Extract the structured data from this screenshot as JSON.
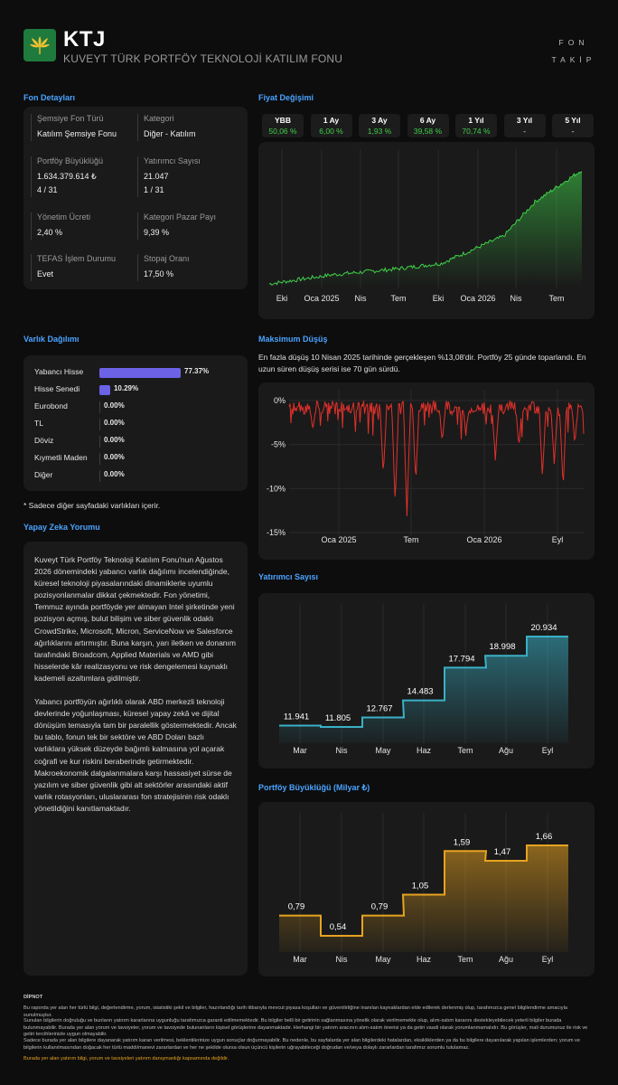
{
  "header": {
    "ticker": "KTJ",
    "fund_name": "KUVEYT TÜRK PORTFÖY TEKNOLOJİ KATILIM FONU",
    "brand_line1": "FON",
    "brand_line2": "TAKİP",
    "logo_icon": "green-leaf-logo-icon"
  },
  "fund_details": {
    "title": "Fon Detayları",
    "fields": [
      {
        "label": "Şemsiye Fon Türü",
        "value": "Katılım Şemsiye Fonu"
      },
      {
        "label": "Kategori",
        "value": "Diğer - Katılım"
      },
      {
        "label": "Portföy Büyüklüğü",
        "value": "1.634.379.614 ₺",
        "value2": "4 / 31"
      },
      {
        "label": "Yatırımcı Sayısı",
        "value": "21.047",
        "value2": "1 / 31"
      },
      {
        "label": "Yönetim Ücreti",
        "value": "2,40 %"
      },
      {
        "label": "Kategori Pazar Payı",
        "value": "9,39 %"
      },
      {
        "label": "TEFAS İşlem Durumu",
        "value": "Evet"
      },
      {
        "label": "Stopaj Oranı",
        "value": "17,50 %"
      }
    ]
  },
  "price_change": {
    "title": "Fiyat Değişimi",
    "periods": [
      {
        "label": "YBB",
        "value": "50,06 %"
      },
      {
        "label": "1 Ay",
        "value": "6,00 %"
      },
      {
        "label": "3 Ay",
        "value": "1,93 %"
      },
      {
        "label": "6 Ay",
        "value": "39,58 %"
      },
      {
        "label": "1 Yıl",
        "value": "70,74 %"
      },
      {
        "label": "3 Yıl",
        "value": "-"
      },
      {
        "label": "5 Yıl",
        "value": "-"
      }
    ],
    "positive_color": "#3fd04a"
  },
  "asset_allocation": {
    "title": "Varlık Dağılımı",
    "items": [
      {
        "name": "Yabancı Hisse",
        "pct": 77.37,
        "label": "77.37%"
      },
      {
        "name": "Hisse Senedi",
        "pct": 10.29,
        "label": "10.29%"
      },
      {
        "name": "Eurobond",
        "pct": 0,
        "label": "0.00%"
      },
      {
        "name": "TL",
        "pct": 0,
        "label": "0.00%"
      },
      {
        "name": "Döviz",
        "pct": 0,
        "label": "0.00%"
      },
      {
        "name": "Kıymetli Maden",
        "pct": 0,
        "label": "0.00%"
      },
      {
        "name": "Diğer",
        "pct": 0,
        "label": "0.00%"
      }
    ],
    "note": "* Sadece diğer sayfadaki varlıkları içerir.",
    "bar_color": "#6b62e6"
  },
  "ai_comment": {
    "title": "Yapay Zeka Yorumu",
    "paragraphs": [
      "Kuveyt Türk Portföy Teknoloji Katılım Fonu'nun Ağustos 2026 dönemindeki yabancı varlık dağılımı incelendiğinde, küresel teknoloji piyasalarındaki dinamiklerle uyumlu pozisyonlanmalar dikkat çekmektedir. Fon yönetimi, Temmuz ayında portföyde yer almayan Intel şirketinde yeni pozisyon açmış, bulut bilişim ve siber güvenlik odaklı CrowdStrike, Microsoft, Micron, ServiceNow ve Salesforce ağırlıklarını artırmıştır. Buna karşın, yarı iletken ve donanım tarafındaki Broadcom, Applied Materials ve AMD gibi hisselerde kâr realizasyonu ve risk dengelemesi kaynaklı kademeli azaltımlara gidilmiştir.",
      "Yabancı portföyün ağırlıklı olarak ABD merkezli teknoloji devlerinde yoğunlaşması, küresel yapay zekâ ve dijital dönüşüm temasıyla tam bir paralellik göstermektedir. Ancak bu tablo, fonun tek bir sektöre ve ABD Doları bazlı varlıklara yüksek düzeyde bağımlı kalmasına yol açarak coğrafi ve kur riskini beraberinde getirmektedir. Makroekonomik dalgalanmalara karşı hassasiyet sürse de yazılım ve siber güvenlik gibi alt sektörler arasındaki aktif varlık rotasyonları, uluslararası fon stratejisinin risk odaklı yönetildiğini kanıtlamaktadır."
    ]
  },
  "max_drawdown": {
    "title": "Maksimum Düşüş",
    "description": "En fazla düşüş 10 Nisan 2025 tarihinde gerçekleşen %13,08'dir. Portföy 25 günde toparlandı. En uzun süren düşüş serisi ise 70 gün sürdü."
  },
  "chart_data": [
    {
      "type": "area",
      "title": "Fiyat Değişimi",
      "x_ticks": [
        "Eki",
        "Oca 2025",
        "Nis",
        "Tem",
        "Eki",
        "Oca 2026",
        "Nis",
        "Tem"
      ],
      "series": [
        {
          "x": [
            0,
            0.2,
            0.4,
            0.55,
            0.65,
            0.75,
            0.85,
            1.0
          ],
          "values": [
            0.0,
            0.08,
            0.13,
            0.18,
            0.3,
            0.42,
            0.72,
            1.0
          ]
        }
      ],
      "y_axis_visible": false,
      "color": "#3fd04a"
    },
    {
      "type": "line",
      "title": "Maksimum Düşüş",
      "x_ticks": [
        "Oca 2025",
        "Tem",
        "Oca 2026",
        "Eyl"
      ],
      "y_ticks": [
        "0%",
        "-5%",
        "-10%",
        "-15%"
      ],
      "ylim": [
        -15,
        0
      ],
      "series": [
        {
          "min_value": -13.08
        }
      ],
      "color": "#e0312b"
    },
    {
      "type": "line",
      "title": "Yatırımcı Sayısı",
      "categories": [
        "Mar",
        "Nis",
        "May",
        "Haz",
        "Tem",
        "Ağu",
        "Eyl"
      ],
      "values": [
        11941,
        11805,
        12767,
        14483,
        17794,
        18998,
        20934
      ],
      "labels": [
        "11.941",
        "11.805",
        "12.767",
        "14.483",
        "17.794",
        "18.998",
        "20.934"
      ],
      "color": "#3ab0c6"
    },
    {
      "type": "line",
      "title": "Portföy Büyüklüğü (Milyar ₺)",
      "categories": [
        "Mar",
        "Nis",
        "May",
        "Haz",
        "Tem",
        "Ağu",
        "Eyl"
      ],
      "values": [
        0.79,
        0.54,
        0.79,
        1.05,
        1.59,
        1.47,
        1.66
      ],
      "labels": [
        "0,79",
        "0,54",
        "0,79",
        "1,05",
        "1,59",
        "1,47",
        "1,66"
      ],
      "color": "#e7a320"
    }
  ],
  "investor_count": {
    "title": "Yatırımcı Sayısı"
  },
  "portfolio_size": {
    "title": "Portföy Büyüklüğü (Milyar ₺)"
  },
  "disclaimer": {
    "title": "DİPNOT",
    "p1": "Bu raporda yer alan her türlü bilgi, değerlendirme, yorum, istatistiki şekil ve bilgiler, hazırlandığı tarih itibarıyla mevcut piyasa koşulları ve güvenilirliğine inanılan kaynaklardan elde edilerek derlenmiş olup, tarafımızca genel bilgilendirme amacıyla sunulmuştur.",
    "p2": "Sunulan bilgilerin doğruluğu ve bunların yatırım kararlarına uygunluğu tarafımızca garanti edilmemektedir. Bu bilgiler belli bir getirinin sağlanmasına yönelik olarak verilmemekte olup, alım-satım kararını destekleyebilecek yeterli bilgiler burada bulunmayabilir. Burada yer alan yorum ve tavsiyeler, yorum ve tavsiyede bulunanların kişisel görüşlerine dayanmaktadır. Herhangi bir yatırım aracının alım-satım önerisi ya da getiri vaadi olarak yorumlanmamalıdır. Bu görüşler, mali durumunuz ile risk ve getiri tercihlerinizle uygun olmayabilir.",
    "p3": "Sadece burada yer alan bilgilere dayanarak yatırım kararı verilmesi, beklentilerinize uygun sonuçlar doğurmayabilir. Bu nedenle, bu sayfalarda yer alan bilgilerdeki hatalardan, eksikliklerden ya da bu bilgilere dayanılarak yapılan işlemlerden; yorum ve bilgilerin kullanılmasından doğacak her türlü maddi/manevi zararlardan ve her ne şekilde olursa olsun üçüncü kişilerin uğrayabileceği doğrudan ve/veya dolaylı zararlardan tarafımız sorumlu tutulamaz.",
    "warning": "Burada yer alan yatırım bilgi, yorum ve tavsiyeleri yatırım danışmanlığı kapsamında değildir."
  }
}
